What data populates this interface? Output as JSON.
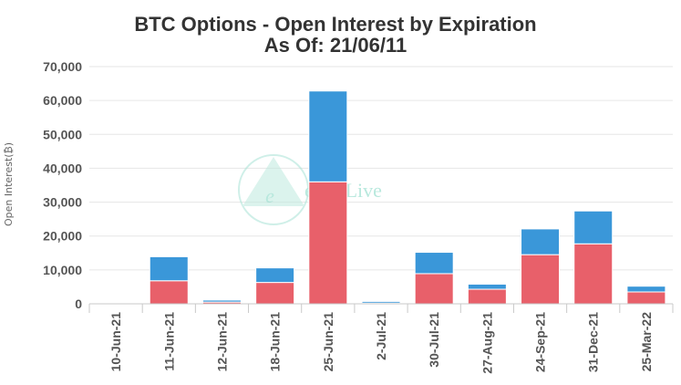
{
  "chart_data": {
    "type": "bar",
    "stacked": true,
    "title": "BTC Options - Open Interest by Expiration",
    "subtitle": "As Of: 21/06/11",
    "ylabel": "Open Interest(₿)",
    "ylim": [
      0,
      70000
    ],
    "yticks": [
      "0",
      "10,000",
      "20,000",
      "30,000",
      "40,000",
      "50,000",
      "60,000",
      "70,000"
    ],
    "ytick_values": [
      0,
      10000,
      20000,
      30000,
      40000,
      50000,
      60000,
      70000
    ],
    "grid": true,
    "categories": [
      "10-Jun-21",
      "11-Jun-21",
      "12-Jun-21",
      "18-Jun-21",
      "25-Jun-21",
      "2-Jul-21",
      "30-Jul-21",
      "27-Aug-21",
      "24-Sep-21",
      "31-Dec-21",
      "25-Mar-22"
    ],
    "series": [
      {
        "color": "#e8606a",
        "values": [
          0,
          6800,
          500,
          6300,
          36000,
          200,
          8900,
          4300,
          14500,
          17700,
          3500
        ]
      },
      {
        "color": "#3a97d9",
        "values": [
          0,
          7100,
          600,
          4300,
          26800,
          500,
          6300,
          1500,
          7600,
          9700,
          1700
        ]
      }
    ],
    "watermark": {
      "text": "eeks.Live",
      "letter": "e"
    }
  }
}
